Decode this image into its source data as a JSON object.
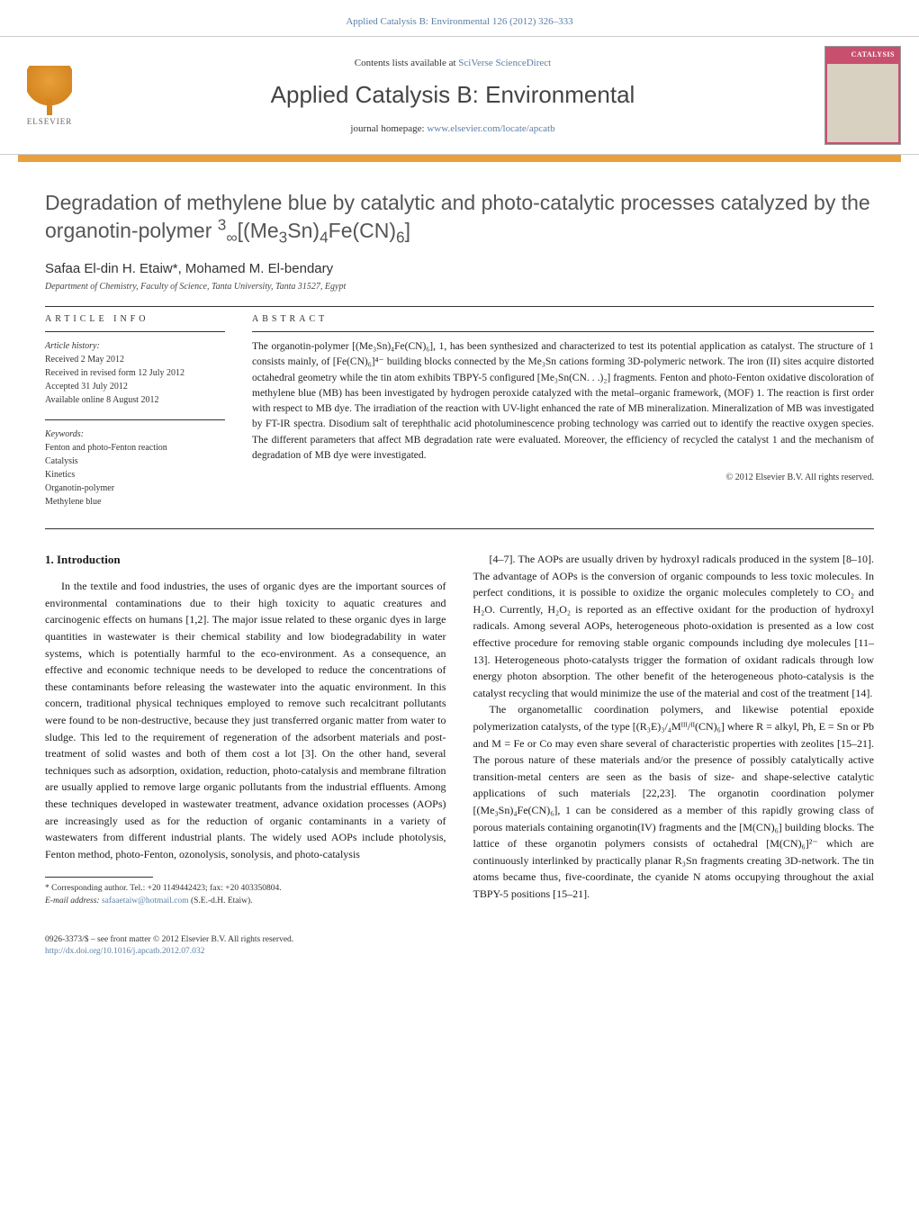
{
  "header": {
    "citation": "Applied Catalysis B: Environmental 126 (2012) 326–333",
    "contents_available": "Contents lists available at",
    "contents_link": "SciVerse ScienceDirect",
    "journal_name": "Applied Catalysis B: Environmental",
    "homepage_label": "journal homepage:",
    "homepage_url": "www.elsevier.com/locate/apcatb",
    "publisher_name": "ELSEVIER",
    "cover_text": "CATALYSIS"
  },
  "article": {
    "title_prefix": "Degradation of methylene blue by catalytic and photo-catalytic processes catalyzed by the organotin-polymer ",
    "title_formula": "³∞[(Me₃Sn)₄Fe(CN)₆]",
    "authors": "Safaa El-din H. Etaiw*, Mohamed M. El-bendary",
    "affiliation": "Department of Chemistry, Faculty of Science, Tanta University, Tanta 31527, Egypt"
  },
  "article_info": {
    "heading": "article info",
    "history_label": "Article history:",
    "received": "Received 2 May 2012",
    "revised": "Received in revised form 12 July 2012",
    "accepted": "Accepted 31 July 2012",
    "online": "Available online 8 August 2012",
    "keywords_label": "Keywords:",
    "kw1": "Fenton and photo-Fenton reaction",
    "kw2": "Catalysis",
    "kw3": "Kinetics",
    "kw4": "Organotin-polymer",
    "kw5": "Methylene blue"
  },
  "abstract": {
    "heading": "abstract",
    "text": "The organotin-polymer [(Me₃Sn)₄Fe(CN)₆], 1, has been synthesized and characterized to test its potential application as catalyst. The structure of 1 consists mainly, of [Fe(CN)₆]⁴⁻ building blocks connected by the Me₃Sn cations forming 3D-polymeric network. The iron (II) sites acquire distorted octahedral geometry while the tin atom exhibits TBPY-5 configured [Me₃Sn(CN. . .)₂] fragments. Fenton and photo-Fenton oxidative discoloration of methylene blue (MB) has been investigated by hydrogen peroxide catalyzed with the metal–organic framework, (MOF) 1. The reaction is first order with respect to MB dye. The irradiation of the reaction with UV-light enhanced the rate of MB mineralization. Mineralization of MB was investigated by FT-IR spectra. Disodium salt of terephthalic acid photoluminescence probing technology was carried out to identify the reactive oxygen species. The different parameters that affect MB degradation rate were evaluated. Moreover, the efficiency of recycled the catalyst 1 and the mechanism of degradation of MB dye were investigated.",
    "copyright": "© 2012 Elsevier B.V. All rights reserved."
  },
  "body": {
    "intro_heading": "1. Introduction",
    "col1_p1": "In the textile and food industries, the uses of organic dyes are the important sources of environmental contaminations due to their high toxicity to aquatic creatures and carcinogenic effects on humans [1,2]. The major issue related to these organic dyes in large quantities in wastewater is their chemical stability and low biodegradability in water systems, which is potentially harmful to the eco-environment. As a consequence, an effective and economic technique needs to be developed to reduce the concentrations of these contaminants before releasing the wastewater into the aquatic environment. In this concern, traditional physical techniques employed to remove such recalcitrant pollutants were found to be non-destructive, because they just transferred organic matter from water to sludge. This led to the requirement of regeneration of the adsorbent materials and post-treatment of solid wastes and both of them cost a lot [3]. On the other hand, several techniques such as adsorption, oxidation, reduction, photo-catalysis and membrane filtration are usually applied to remove large organic pollutants from the industrial effluents. Among these techniques developed in wastewater treatment, advance oxidation processes (AOPs) are increasingly used as for the reduction of organic contaminants in a variety of wastewaters from different industrial plants. The widely used AOPs include photolysis, Fenton method, photo-Fenton, ozonolysis, sonolysis, and photo-catalysis",
    "col2_p1": "[4–7]. The AOPs are usually driven by hydroxyl radicals produced in the system [8–10]. The advantage of AOPs is the conversion of organic compounds to less toxic molecules. In perfect conditions, it is possible to oxidize the organic molecules completely to CO₂ and H₂O. Currently, H₂O₂ is reported as an effective oxidant for the production of hydroxyl radicals. Among several AOPs, heterogeneous photo-oxidation is presented as a low cost effective procedure for removing stable organic compounds including dye molecules [11–13]. Heterogeneous photo-catalysts trigger the formation of oxidant radicals through low energy photon absorption. The other benefit of the heterogeneous photo-catalysis is the catalyst recycling that would minimize the use of the material and cost of the treatment [14].",
    "col2_p2": "The organometallic coordination polymers, and likewise potential epoxide polymerization catalysts, of the type [(R₃E)₃/₄Mᴵᴵᴵ/ᴵᴵ(CN)₆] where R = alkyl, Ph, E = Sn or Pb and M = Fe or Co may even share several of characteristic properties with zeolites [15–21]. The porous nature of these materials and/or the presence of possibly catalytically active transition-metal centers are seen as the basis of size- and shape-selective catalytic applications of such materials [22,23]. The organotin coordination polymer [(Me₃Sn)₄Fe(CN)₆], 1 can be considered as a member of this rapidly growing class of porous materials containing organotin(IV) fragments and the [M(CN)₆] building blocks. The lattice of these organotin polymers consists of octahedral [M(CN)₆]²⁻ which are continuously interlinked by practically planar R₃Sn fragments creating 3D-network. The tin atoms became thus, five-coordinate, the cyanide N atoms occupying throughout the axial TBPY-5 positions [15–21]."
  },
  "footnote": {
    "corresponding": "* Corresponding author. Tel.: +20 1149442423; fax: +20 403350804.",
    "email_label": "E-mail address:",
    "email": "safaaetaiw@hotmail.com",
    "email_suffix": "(S.E.-d.H. Etaiw)."
  },
  "footer": {
    "issn": "0926-3373/$ – see front matter © 2012 Elsevier B.V. All rights reserved.",
    "doi": "http://dx.doi.org/10.1016/j.apcatb.2012.07.032"
  },
  "colors": {
    "link": "#5b7fa6",
    "accent_orange": "#e8a03a",
    "cover_pink": "#c94f6f",
    "text": "#1a1a1a",
    "heading_gray": "#555555"
  }
}
